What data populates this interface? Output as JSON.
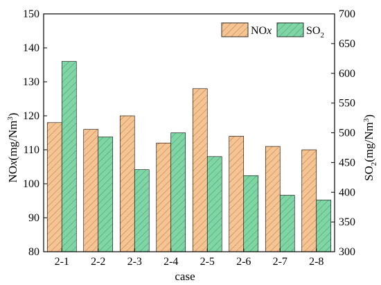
{
  "chart_data": {
    "type": "bar",
    "xlabel": "case",
    "categories": [
      "2-1",
      "2-2",
      "2-3",
      "2-4",
      "2-5",
      "2-6",
      "2-7",
      "2-8"
    ],
    "left_axis": {
      "label_main": "NO",
      "label_italic": "x",
      "label_rest": "(mg/Nm",
      "label_sup": "3",
      "label_close": ")",
      "ylim": [
        80,
        150
      ],
      "ticks": [
        "80",
        "90",
        "100",
        "110",
        "120",
        "130",
        "140",
        "150"
      ]
    },
    "right_axis": {
      "label_main": "SO",
      "label_sub": "2",
      "label_rest": "(mg/Nm",
      "label_sup": "3",
      "label_close": ")",
      "ylim": [
        300,
        700
      ],
      "ticks": [
        "300",
        "350",
        "400",
        "450",
        "500",
        "550",
        "600",
        "650",
        "700"
      ]
    },
    "series": [
      {
        "name": "NOx",
        "name_main": "NO",
        "name_italic": "x",
        "axis": "left",
        "color": "#f4c593",
        "hatch": "#c87a50",
        "values": [
          118,
          116,
          120,
          112,
          128,
          114,
          111,
          110
        ]
      },
      {
        "name": "SO2",
        "name_main": "SO",
        "name_sub": "2",
        "axis": "right",
        "color": "#7fd6a4",
        "hatch": "#4e9a78",
        "values": [
          620,
          493,
          438,
          500,
          460,
          428,
          395,
          387
        ]
      }
    ],
    "legend_position": "top-right",
    "grid": false
  }
}
